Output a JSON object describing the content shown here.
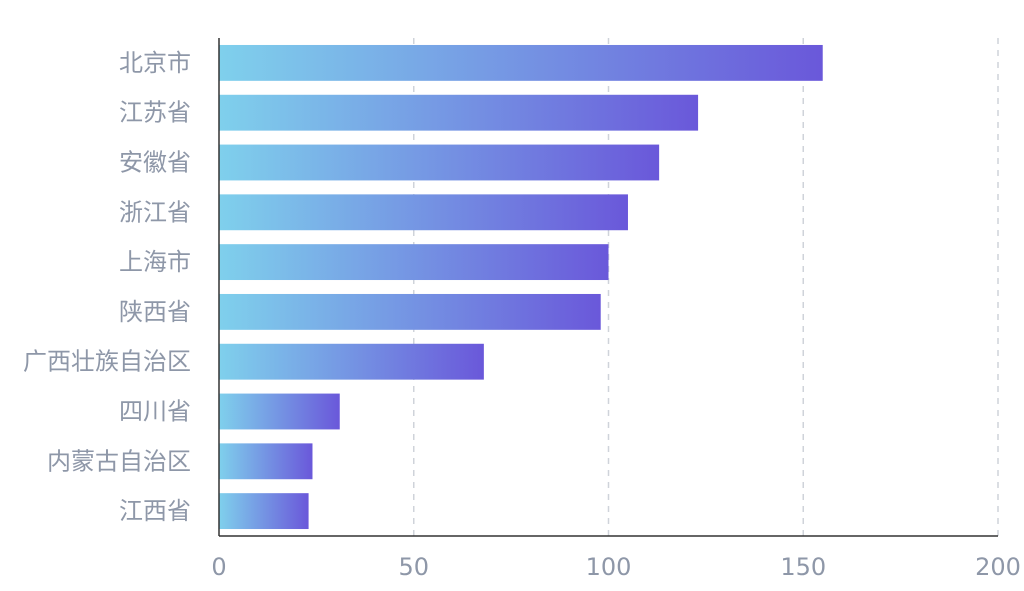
{
  "chart_data": {
    "type": "bar",
    "orientation": "horizontal",
    "categories": [
      "北京市",
      "江苏省",
      "安徽省",
      "浙江省",
      "上海市",
      "陕西省",
      "广西壮族自治区",
      "四川省",
      "内蒙古自治区",
      "江西省"
    ],
    "values": [
      155,
      123,
      113,
      105,
      100,
      98,
      68,
      31,
      24,
      23
    ],
    "xlim": [
      0,
      200
    ],
    "x_ticks": [
      0,
      50,
      100,
      150,
      200
    ],
    "grid": "vertical-dashed",
    "title": "",
    "xlabel": "",
    "ylabel": "",
    "colors": {
      "bar_gradient_start": "#7fd0ec",
      "bar_gradient_end": "#6a58da",
      "label_text": "#8e97a8",
      "grid": "#cfd3da",
      "axis": "#333333"
    }
  }
}
